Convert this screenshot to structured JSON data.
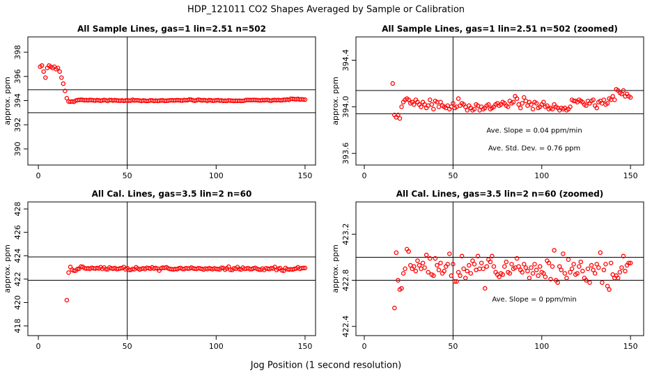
{
  "title": "HDP_121011  CO2 Shapes Averaged by Sample or Calibration",
  "xlabel": "Jog Position (1 second resolution)",
  "chart_data": [
    {
      "type": "scatter",
      "title": "All Sample Lines, gas=1 lin=2.51 n=502",
      "ylabel": "approx. ppm",
      "color": "#ff0000",
      "x": [
        1,
        2,
        3,
        4,
        5,
        6,
        7,
        8,
        9,
        10,
        11,
        12,
        13,
        14,
        15,
        16,
        17,
        18,
        19,
        20,
        21,
        22,
        23,
        24,
        25,
        26,
        27,
        28,
        29,
        30,
        31,
        32,
        33,
        34,
        35,
        36,
        37,
        38,
        39,
        40,
        41,
        42,
        43,
        44,
        45,
        46,
        47,
        48,
        49,
        50,
        51,
        52,
        53,
        54,
        55,
        56,
        57,
        58,
        59,
        60,
        61,
        62,
        63,
        64,
        65,
        66,
        67,
        68,
        69,
        70,
        71,
        72,
        73,
        74,
        75,
        76,
        77,
        78,
        79,
        80,
        81,
        82,
        83,
        84,
        85,
        86,
        87,
        88,
        89,
        90,
        91,
        92,
        93,
        94,
        95,
        96,
        97,
        98,
        99,
        100,
        101,
        102,
        103,
        104,
        105,
        106,
        107,
        108,
        109,
        110,
        111,
        112,
        113,
        114,
        115,
        116,
        117,
        118,
        119,
        120,
        121,
        122,
        123,
        124,
        125,
        126,
        127,
        128,
        129,
        130,
        131,
        132,
        133,
        134,
        135,
        136,
        137,
        138,
        139,
        140,
        141,
        142,
        143,
        144,
        145,
        146,
        147,
        148,
        149,
        150
      ],
      "values": [
        396.8,
        396.9,
        396.4,
        395.9,
        396.7,
        396.9,
        396.8,
        396.7,
        396.8,
        396.6,
        396.7,
        396.4,
        395.9,
        395.4,
        394.8,
        394.2,
        393.93,
        393.91,
        393.93,
        393.9,
        394.0,
        394.04,
        394.06,
        394.07,
        394.06,
        394.03,
        394.04,
        394.02,
        394.06,
        394.04,
        394.02,
        394.0,
        394.04,
        394.02,
        393.99,
        394.01,
        394.06,
        394.02,
        393.98,
        394.05,
        394.04,
        394.0,
        394.04,
        394.01,
        394.0,
        393.99,
        394.01,
        393.98,
        394.0,
        394.03,
        393.99,
        394.0,
        394.07,
        394.01,
        394.03,
        394.02,
        394.0,
        393.97,
        394.01,
        393.99,
        393.97,
        393.98,
        394.02,
        394.01,
        393.97,
        394.0,
        393.98,
        393.99,
        394.01,
        394.02,
        393.98,
        393.99,
        394.0,
        394.02,
        394.03,
        394.01,
        394.02,
        394.04,
        394.03,
        394.01,
        394.0,
        394.05,
        394.03,
        394.04,
        394.09,
        394.07,
        394.02,
        393.99,
        394.03,
        394.08,
        394.05,
        394.01,
        394.04,
        394.02,
        393.98,
        394.04,
        394.03,
        393.99,
        394.0,
        394.02,
        394.04,
        394.0,
        394.01,
        393.98,
        393.99,
        393.98,
        394.02,
        394.0,
        393.99,
        393.97,
        393.99,
        393.98,
        393.99,
        393.97,
        393.98,
        394.0,
        394.06,
        394.05,
        394.05,
        394.04,
        394.06,
        394.05,
        394.04,
        394.02,
        394.01,
        394.05,
        394.03,
        394.05,
        394.06,
        394.01,
        393.99,
        394.04,
        394.05,
        394.03,
        394.06,
        394.02,
        394.03,
        394.07,
        394.06,
        394.09,
        394.06,
        394.15,
        394.14,
        394.12,
        394.11,
        394.14,
        394.09,
        394.11,
        394.09,
        394.08
      ],
      "xlim": [
        -5.9,
        155.9
      ],
      "ylim": [
        388.67,
        399.27
      ],
      "xticks": [
        0,
        50,
        100,
        150
      ],
      "yticks": [
        390,
        392,
        394,
        396,
        398
      ],
      "hlines": [
        394.9,
        393.0
      ],
      "vlines": [
        50
      ],
      "annotations": []
    },
    {
      "type": "scatter",
      "title": "All Sample Lines, gas=1 lin=2.51 n=502 (zoomed)",
      "ylabel": "approx. ppm",
      "color": "#ff0000",
      "x": [
        16,
        17,
        18,
        19,
        20,
        21,
        22,
        23,
        24,
        25,
        26,
        27,
        28,
        29,
        30,
        31,
        32,
        33,
        34,
        35,
        36,
        37,
        38,
        39,
        40,
        41,
        42,
        43,
        44,
        45,
        46,
        47,
        48,
        49,
        50,
        51,
        52,
        53,
        54,
        55,
        56,
        57,
        58,
        59,
        60,
        61,
        62,
        63,
        64,
        65,
        66,
        67,
        68,
        69,
        70,
        71,
        72,
        73,
        74,
        75,
        76,
        77,
        78,
        79,
        80,
        81,
        82,
        83,
        84,
        85,
        86,
        87,
        88,
        89,
        90,
        91,
        92,
        93,
        94,
        95,
        96,
        97,
        98,
        99,
        100,
        101,
        102,
        103,
        104,
        105,
        106,
        107,
        108,
        109,
        110,
        111,
        112,
        113,
        114,
        115,
        116,
        117,
        118,
        119,
        120,
        121,
        122,
        123,
        124,
        125,
        126,
        127,
        128,
        129,
        130,
        131,
        132,
        133,
        134,
        135,
        136,
        137,
        138,
        139,
        140,
        141,
        142,
        143,
        144,
        145,
        146,
        147,
        148,
        149,
        150
      ],
      "values": [
        394.2,
        393.93,
        393.91,
        393.93,
        393.9,
        394.0,
        394.04,
        394.06,
        394.07,
        394.06,
        394.03,
        394.04,
        394.02,
        394.06,
        394.04,
        394.02,
        394.0,
        394.04,
        394.02,
        393.99,
        394.01,
        394.06,
        394.02,
        393.98,
        394.05,
        394.04,
        394.0,
        394.04,
        394.01,
        394.0,
        393.99,
        394.01,
        393.98,
        394.0,
        394.03,
        393.99,
        394.0,
        394.07,
        394.01,
        394.03,
        394.02,
        394.0,
        393.97,
        394.01,
        393.99,
        393.97,
        393.98,
        394.02,
        394.01,
        393.97,
        394.0,
        393.98,
        393.99,
        394.01,
        394.02,
        393.98,
        393.99,
        394.0,
        394.02,
        394.03,
        394.01,
        394.02,
        394.04,
        394.03,
        394.01,
        394.0,
        394.05,
        394.03,
        394.04,
        394.09,
        394.07,
        394.02,
        393.99,
        394.03,
        394.08,
        394.05,
        394.01,
        394.04,
        394.02,
        393.98,
        394.04,
        394.03,
        393.99,
        394.0,
        394.02,
        394.04,
        394.0,
        394.01,
        393.98,
        393.99,
        393.98,
        394.02,
        394.0,
        393.99,
        393.97,
        393.99,
        393.98,
        393.99,
        393.97,
        393.98,
        394.0,
        394.06,
        394.05,
        394.05,
        394.04,
        394.06,
        394.05,
        394.04,
        394.02,
        394.01,
        394.05,
        394.03,
        394.05,
        394.06,
        394.01,
        393.99,
        394.04,
        394.05,
        394.03,
        394.06,
        394.02,
        394.03,
        394.07,
        394.06,
        394.09,
        394.06,
        394.15,
        394.14,
        394.12,
        394.11,
        394.14,
        394.09,
        394.11,
        394.09,
        394.08
      ],
      "xlim": [
        -4.7,
        157.4
      ],
      "ylim": [
        393.5,
        394.6
      ],
      "xticks": [
        0,
        50,
        100,
        150
      ],
      "yticks": [
        393.6,
        {
          "value": 394,
          "label": "394.0"
        },
        394.4
      ],
      "hlines": [
        394.14,
        393.94
      ],
      "vlines": [
        50
      ],
      "annotations": [
        "Ave. Slope =  0.04  ppm/min",
        "Ave. Std. Dev. =  0.76  ppm"
      ]
    },
    {
      "type": "scatter",
      "title": "All Cal. Lines, gas=3.5 lin=2 n=60",
      "ylabel": "approx. ppm",
      "color": "#ff0000",
      "x": [
        16,
        17,
        18,
        19,
        20,
        21,
        22,
        23,
        24,
        25,
        26,
        27,
        28,
        29,
        30,
        31,
        32,
        33,
        34,
        35,
        36,
        37,
        38,
        39,
        40,
        41,
        42,
        43,
        44,
        45,
        46,
        47,
        48,
        49,
        50,
        51,
        52,
        53,
        54,
        55,
        56,
        57,
        58,
        59,
        60,
        61,
        62,
        63,
        64,
        65,
        66,
        67,
        68,
        69,
        70,
        71,
        72,
        73,
        74,
        75,
        76,
        77,
        78,
        79,
        80,
        81,
        82,
        83,
        84,
        85,
        86,
        87,
        88,
        89,
        90,
        91,
        92,
        93,
        94,
        95,
        96,
        97,
        98,
        99,
        100,
        101,
        102,
        103,
        104,
        105,
        106,
        107,
        108,
        109,
        110,
        111,
        112,
        113,
        114,
        115,
        116,
        117,
        118,
        119,
        120,
        121,
        122,
        123,
        124,
        125,
        126,
        127,
        128,
        129,
        130,
        131,
        132,
        133,
        134,
        135,
        136,
        137,
        138,
        139,
        140,
        141,
        142,
        143,
        144,
        145,
        146,
        147,
        148,
        149,
        150
      ],
      "values": [
        420.2,
        422.56,
        423.04,
        422.8,
        422.72,
        422.73,
        422.86,
        422.9,
        423.07,
        423.05,
        422.93,
        422.9,
        422.92,
        422.88,
        422.97,
        422.93,
        422.9,
        422.95,
        422.91,
        423.02,
        422.87,
        422.99,
        422.85,
        422.84,
        422.99,
        422.93,
        422.89,
        422.95,
        422.86,
        422.88,
        422.92,
        422.94,
        423.03,
        422.84,
        422.94,
        422.79,
        422.79,
        422.87,
        422.84,
        423.01,
        422.9,
        422.82,
        422.88,
        422.93,
        422.86,
        422.97,
        422.94,
        422.89,
        423.01,
        422.9,
        422.95,
        422.9,
        422.73,
        422.92,
        422.98,
        422.96,
        423.01,
        422.92,
        422.87,
        422.85,
        422.83,
        422.86,
        422.85,
        422.92,
        422.96,
        422.87,
        422.86,
        422.94,
        422.9,
        422.91,
        422.99,
        422.92,
        422.89,
        422.87,
        422.94,
        422.91,
        422.88,
        422.82,
        422.91,
        422.86,
        422.94,
        422.89,
        422.84,
        422.92,
        422.87,
        422.86,
        422.83,
        422.97,
        422.95,
        422.81,
        422.92,
        423.06,
        422.8,
        422.78,
        422.92,
        422.89,
        423.03,
        422.86,
        422.82,
        422.98,
        422.87,
        422.9,
        422.94,
        422.85,
        422.86,
        422.92,
        422.96,
        422.88,
        422.82,
        422.8,
        422.9,
        422.78,
        422.93,
        422.89,
        422.86,
        422.94,
        422.91,
        423.04,
        422.78,
        422.89,
        422.94,
        422.75,
        422.72,
        422.95,
        422.85,
        422.82,
        422.84,
        422.82,
        422.87,
        422.91,
        423.01,
        422.88,
        422.93,
        422.95,
        422.95
      ],
      "xlim": [
        -5.9,
        155.9
      ],
      "ylim": [
        417.17,
        428.6
      ],
      "xticks": [
        0,
        50,
        100,
        150
      ],
      "yticks": [
        418,
        420,
        422,
        424,
        426,
        428
      ],
      "hlines": [
        423.9,
        421.9
      ],
      "vlines": [
        50
      ],
      "annotations": []
    },
    {
      "type": "scatter",
      "title": "All Cal. Lines, gas=3.5 lin=2 n=60 (zoomed)",
      "ylabel": "approx. ppm",
      "color": "#ff0000",
      "x": [
        17,
        18,
        19,
        20,
        21,
        22,
        23,
        24,
        25,
        26,
        27,
        28,
        29,
        30,
        31,
        32,
        33,
        34,
        35,
        36,
        37,
        38,
        39,
        40,
        41,
        42,
        43,
        44,
        45,
        46,
        47,
        48,
        49,
        50,
        51,
        52,
        53,
        54,
        55,
        56,
        57,
        58,
        59,
        60,
        61,
        62,
        63,
        64,
        65,
        66,
        67,
        68,
        69,
        70,
        71,
        72,
        73,
        74,
        75,
        76,
        77,
        78,
        79,
        80,
        81,
        82,
        83,
        84,
        85,
        86,
        87,
        88,
        89,
        90,
        91,
        92,
        93,
        94,
        95,
        96,
        97,
        98,
        99,
        100,
        101,
        102,
        103,
        104,
        105,
        106,
        107,
        108,
        109,
        110,
        111,
        112,
        113,
        114,
        115,
        116,
        117,
        118,
        119,
        120,
        121,
        122,
        123,
        124,
        125,
        126,
        127,
        128,
        129,
        130,
        131,
        132,
        133,
        134,
        135,
        136,
        137,
        138,
        139,
        140,
        141,
        142,
        143,
        144,
        145,
        146,
        147,
        148,
        149,
        150
      ],
      "values": [
        422.56,
        423.04,
        422.8,
        422.72,
        422.73,
        422.86,
        422.9,
        423.07,
        423.05,
        422.93,
        422.9,
        422.92,
        422.88,
        422.97,
        422.93,
        422.9,
        422.95,
        422.91,
        423.02,
        422.87,
        422.99,
        422.85,
        422.84,
        422.99,
        422.93,
        422.89,
        422.95,
        422.86,
        422.88,
        422.92,
        422.94,
        423.03,
        422.84,
        422.94,
        422.79,
        422.79,
        422.87,
        422.84,
        423.01,
        422.9,
        422.82,
        422.88,
        422.93,
        422.86,
        422.97,
        422.94,
        422.89,
        423.01,
        422.9,
        422.95,
        422.9,
        422.73,
        422.92,
        422.98,
        422.96,
        423.01,
        422.92,
        422.87,
        422.85,
        422.83,
        422.86,
        422.85,
        422.92,
        422.96,
        422.87,
        422.86,
        422.94,
        422.9,
        422.91,
        422.99,
        422.92,
        422.89,
        422.87,
        422.94,
        422.91,
        422.88,
        422.82,
        422.91,
        422.86,
        422.94,
        422.89,
        422.84,
        422.92,
        422.87,
        422.86,
        422.83,
        422.97,
        422.95,
        422.81,
        422.92,
        423.06,
        422.8,
        422.78,
        422.92,
        422.89,
        423.03,
        422.86,
        422.82,
        422.98,
        422.87,
        422.9,
        422.94,
        422.85,
        422.86,
        422.92,
        422.96,
        422.88,
        422.82,
        422.8,
        422.9,
        422.78,
        422.93,
        422.89,
        422.86,
        422.94,
        422.91,
        423.04,
        422.78,
        422.89,
        422.94,
        422.75,
        422.72,
        422.95,
        422.85,
        422.82,
        422.84,
        422.82,
        422.87,
        422.91,
        423.01,
        422.88,
        422.93,
        422.95,
        422.95
      ],
      "xlim": [
        -4.7,
        157.4
      ],
      "ylim": [
        422.32,
        423.48
      ],
      "xticks": [
        0,
        50,
        100,
        150
      ],
      "yticks": [
        422.4,
        422.8,
        423.2
      ],
      "hlines": [
        423.0,
        422.8
      ],
      "vlines": [
        50
      ],
      "annotations": [
        "Ave. Slope =  0  ppm/min"
      ]
    }
  ]
}
